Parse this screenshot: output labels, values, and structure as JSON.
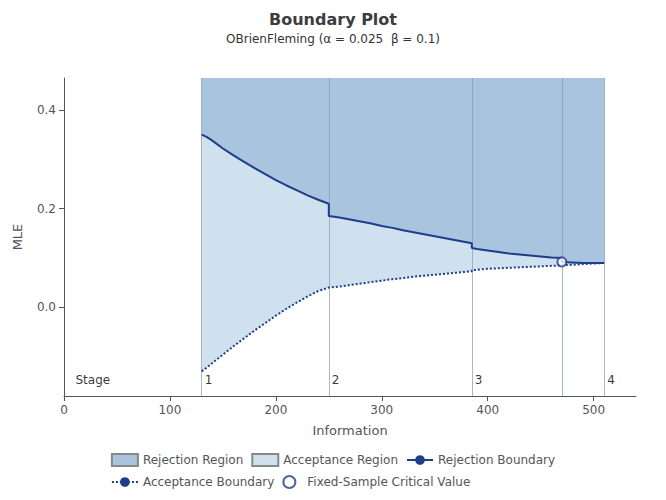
{
  "chart_data": {
    "type": "line",
    "title": "Boundary Plot",
    "subtitle": "OBrienFleming (α = 0.025  β = 0.1)",
    "xlabel": "Information",
    "ylabel": "MLE",
    "xlim": [
      0,
      540
    ],
    "ylim": [
      -0.18,
      0.465
    ],
    "xticks": [
      0,
      100,
      200,
      300,
      400,
      500
    ],
    "yticks": [
      {
        "value": 0.0,
        "label": "0.0"
      },
      0.2,
      0.4
    ],
    "grid": false,
    "legend": "bottom",
    "regions": [
      {
        "name": "Rejection Region",
        "color": "#a8c4de",
        "lower": "Rejection Boundary"
      },
      {
        "name": "Acceptance Region",
        "color": "#cfe0ef",
        "lower": "Acceptance Boundary"
      }
    ],
    "series": [
      {
        "name": "Rejection Boundary",
        "type": "line",
        "color": "#1f3d8a",
        "line_style": "solid",
        "x": [
          130,
          135,
          140,
          150,
          160,
          170,
          180,
          190,
          200,
          210,
          220,
          230,
          240,
          250,
          250,
          260,
          270,
          280,
          290,
          300,
          310,
          320,
          330,
          340,
          350,
          360,
          370,
          380,
          385,
          385,
          390,
          400,
          410,
          420,
          430,
          440,
          450,
          460,
          470,
          470,
          480,
          490,
          500,
          510
        ],
        "values": [
          0.35,
          0.345,
          0.338,
          0.322,
          0.308,
          0.295,
          0.282,
          0.27,
          0.258,
          0.247,
          0.237,
          0.227,
          0.218,
          0.21,
          0.185,
          0.182,
          0.178,
          0.174,
          0.17,
          0.165,
          0.161,
          0.156,
          0.152,
          0.148,
          0.144,
          0.14,
          0.136,
          0.132,
          0.13,
          0.12,
          0.118,
          0.115,
          0.112,
          0.109,
          0.107,
          0.105,
          0.103,
          0.101,
          0.1,
          0.092,
          0.091,
          0.09,
          0.09,
          0.09
        ]
      },
      {
        "name": "Acceptance Boundary",
        "type": "line",
        "color": "#1f3d8a",
        "line_style": "dotted",
        "x": [
          130,
          135,
          140,
          150,
          160,
          170,
          180,
          190,
          200,
          210,
          220,
          230,
          240,
          250,
          250,
          260,
          270,
          280,
          290,
          300,
          310,
          320,
          330,
          340,
          350,
          360,
          370,
          380,
          385,
          385,
          390,
          400,
          410,
          420,
          430,
          440,
          450,
          460,
          470,
          510
        ],
        "values": [
          -0.13,
          -0.122,
          -0.113,
          -0.096,
          -0.079,
          -0.063,
          -0.047,
          -0.032,
          -0.017,
          -0.003,
          0.01,
          0.022,
          0.033,
          0.04,
          0.04,
          0.042,
          0.045,
          0.048,
          0.051,
          0.054,
          0.057,
          0.059,
          0.062,
          0.064,
          0.066,
          0.068,
          0.07,
          0.072,
          0.073,
          0.075,
          0.076,
          0.078,
          0.079,
          0.08,
          0.081,
          0.082,
          0.083,
          0.084,
          0.085,
          0.09
        ]
      },
      {
        "name": "Fixed-Sample Critical Value",
        "type": "scatter",
        "color": "#1f3d8a",
        "marker": "open circle",
        "x": [
          470
        ],
        "values": [
          0.092
        ]
      }
    ],
    "stage_lines": {
      "x": [
        130,
        250,
        385,
        470,
        510
      ],
      "color": "#8899bb"
    },
    "annotations": [
      {
        "text": "Stage",
        "x": 8
      },
      {
        "text": "1",
        "x": 130
      },
      {
        "text": "2",
        "x": 250
      },
      {
        "text": "3",
        "x": 385
      },
      {
        "text": "4",
        "x": 510
      }
    ]
  }
}
